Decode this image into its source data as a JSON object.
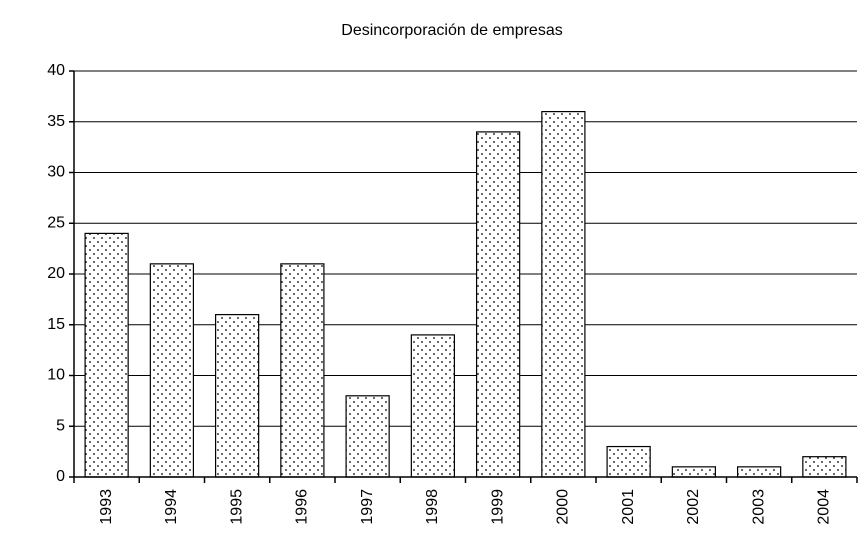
{
  "chart_data": {
    "type": "bar",
    "title": "Desincorporación de empresas",
    "categories": [
      "1993",
      "1994",
      "1995",
      "1996",
      "1997",
      "1998",
      "1999",
      "2000",
      "2001",
      "2002",
      "2003",
      "2004"
    ],
    "values": [
      24,
      21,
      16,
      21,
      8,
      14,
      34,
      36,
      3,
      1,
      1,
      2
    ],
    "ylim": [
      0,
      40
    ],
    "yticks": [
      0,
      5,
      10,
      15,
      20,
      25,
      30,
      35,
      40
    ],
    "grid": true
  }
}
